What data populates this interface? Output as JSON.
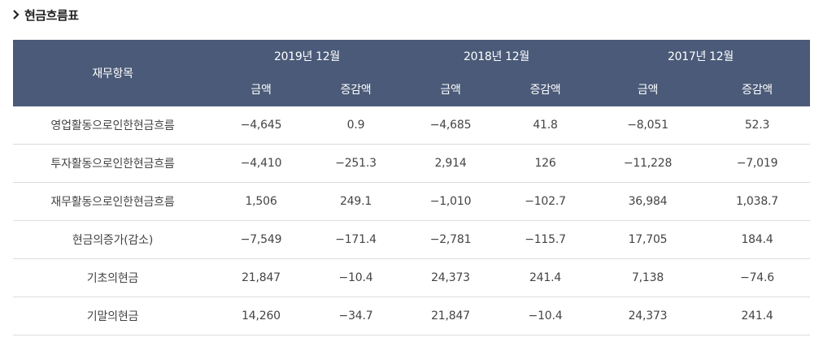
{
  "title": "현금흐름표",
  "header": {
    "item_col": "재무항목",
    "periods": [
      "2019년 12월",
      "2018년 12월",
      "2017년 12월"
    ],
    "amount": "금액",
    "change": "증감액"
  },
  "rows": [
    {
      "label": "영업활동으로인한현금흐름",
      "values": [
        "−4,645",
        "0.9",
        "−4,685",
        "41.8",
        "−8,051",
        "52.3"
      ]
    },
    {
      "label": "투자활동으로인한현금흐름",
      "values": [
        "−4,410",
        "−251.3",
        "2,914",
        "126",
        "−11,228",
        "−7,019"
      ]
    },
    {
      "label": "재무활동으로인한현금흐름",
      "values": [
        "1,506",
        "249.1",
        "−1,010",
        "−102.7",
        "36,984",
        "1,038.7"
      ]
    },
    {
      "label": "현금의증가(감소)",
      "values": [
        "−7,549",
        "−171.4",
        "−2,781",
        "−115.7",
        "17,705",
        "184.4"
      ]
    },
    {
      "label": "기초의현금",
      "values": [
        "21,847",
        "−10.4",
        "24,373",
        "241.4",
        "7,138",
        "−74.6"
      ]
    },
    {
      "label": "기말의현금",
      "values": [
        "14,260",
        "−34.7",
        "21,847",
        "−10.4",
        "24,373",
        "241.4"
      ]
    }
  ]
}
